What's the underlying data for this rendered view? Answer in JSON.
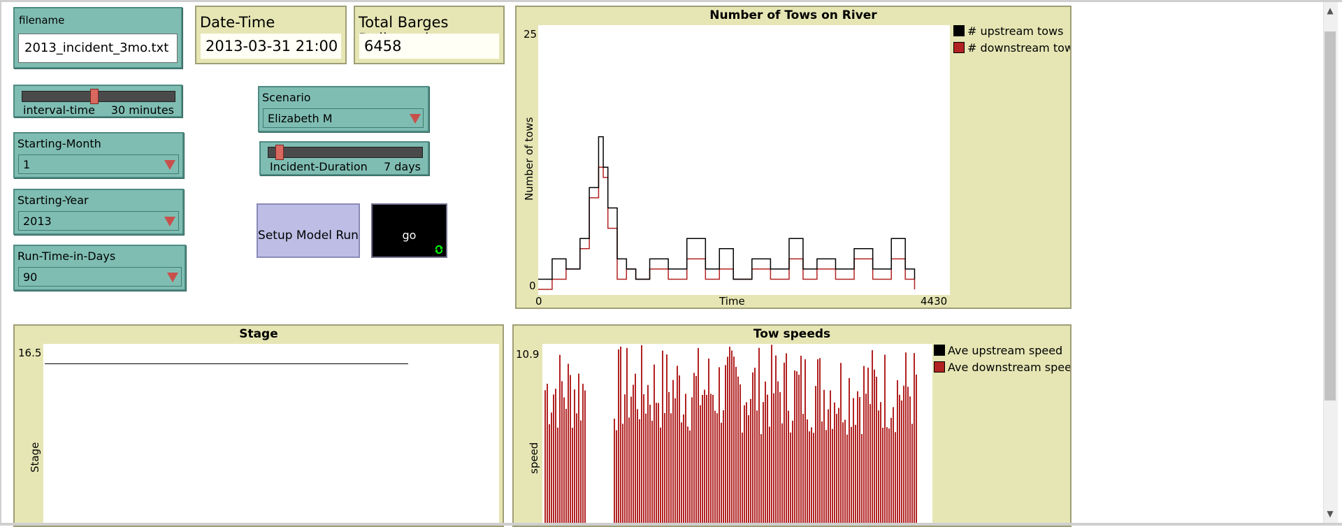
{
  "filename": {
    "label": "filename",
    "value": "2013_incident_3mo.txt"
  },
  "date_time": {
    "label": "Date-Time",
    "value": "2013-03-31 21:00"
  },
  "total_barges": {
    "label": "Total Barges Delivered",
    "value": "6458"
  },
  "interval_slider": {
    "label": "interval-time",
    "value": "30 minutes",
    "level": 0.47
  },
  "starting_month": {
    "label": "Starting-Month",
    "value": "1"
  },
  "starting_year": {
    "label": "Starting-Year",
    "value": "2013"
  },
  "run_time": {
    "label": "Run-Time-in-Days",
    "value": "90"
  },
  "scenario": {
    "label": "Scenario",
    "value": "Elizabeth M"
  },
  "incident_slider": {
    "label": "Incident-Duration",
    "value": "7 days",
    "level": 0.05
  },
  "buttons": {
    "setup": "Setup Model Run",
    "go": "go"
  },
  "colors": {
    "widget_teal": "#7fbdb3",
    "monitor_bg": "#e6e6b5",
    "downstream": "#b22222",
    "upstream": "#000000",
    "setup_button": "#bdbde6",
    "go_icon": "#00ff00"
  },
  "icons": {
    "chooser": "dropdown-triangle-icon",
    "go": "forever-loop-icon"
  },
  "chart_data": [
    {
      "type": "line",
      "title": "Number of Tows on River",
      "xlabel": "Time",
      "ylabel": "Number of tows",
      "x_ticks": [
        "0",
        "4430"
      ],
      "y_ticks": [
        "0",
        "25"
      ],
      "xlim": [
        0,
        4430
      ],
      "ylim": [
        0,
        25
      ],
      "legend_position": "top-right",
      "series": [
        {
          "name": "# upstream tows",
          "color": "#000000",
          "x": [
            0,
            150,
            300,
            450,
            550,
            650,
            700,
            750,
            850,
            950,
            1050,
            1200,
            1400,
            1600,
            1800,
            1950,
            2100,
            2300,
            2500,
            2700,
            2850,
            3000,
            3200,
            3400,
            3600,
            3800,
            3950,
            4050
          ],
          "y": [
            1,
            3,
            2,
            5,
            10,
            15,
            12,
            8,
            3,
            2,
            1,
            3,
            2,
            5,
            2,
            4,
            1,
            3,
            2,
            5,
            2,
            3,
            2,
            4,
            2,
            5,
            2,
            1
          ]
        },
        {
          "name": "# downstream tows",
          "color": "#b22222",
          "x": [
            0,
            150,
            300,
            450,
            550,
            650,
            700,
            750,
            850,
            950,
            1050,
            1200,
            1400,
            1600,
            1800,
            1950,
            2100,
            2300,
            2500,
            2700,
            2850,
            3000,
            3200,
            3400,
            3600,
            3800,
            3950,
            4050
          ],
          "y": [
            0,
            1,
            2,
            4,
            9,
            12,
            11,
            6,
            1,
            2,
            1,
            2,
            1,
            3,
            1,
            2,
            1,
            2,
            1,
            3,
            1,
            2,
            1,
            3,
            1,
            3,
            1,
            0
          ]
        }
      ]
    },
    {
      "type": "line",
      "title": "Stage",
      "ylabel": "Stage",
      "y_ticks": [
        "16.5"
      ],
      "series": [
        {
          "color": "#000000",
          "x": [
            0,
            1
          ],
          "y": [
            16.5,
            16.5
          ]
        }
      ]
    },
    {
      "type": "bar",
      "title": "Tow speeds",
      "ylabel": "speed",
      "y_ticks": [
        "10.9"
      ],
      "legend_position": "top-right",
      "series": [
        {
          "name": "Ave upstream speed",
          "color": "#000000"
        },
        {
          "name": "Ave downstream speed",
          "color": "#b22222"
        }
      ]
    }
  ]
}
